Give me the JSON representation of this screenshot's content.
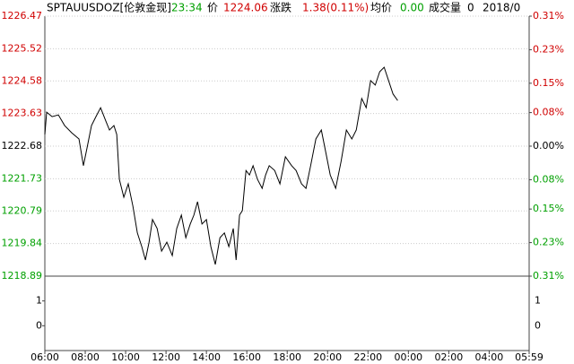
{
  "header": {
    "symbol": "SPTAUUSDOZ[伦敦金现]",
    "time": "23:34",
    "price_label": "价",
    "price": "1224.06",
    "change_label": "涨跌",
    "change": "1.38(0.11%)",
    "avg_label": "均价",
    "avg": "0.00",
    "volume_label": "成交量",
    "volume": "0",
    "date": "2018/0"
  },
  "chart_data": {
    "type": "line",
    "color": "#000000",
    "grid": true,
    "x": [
      6.0,
      6.09,
      6.36,
      6.67,
      6.98,
      7.33,
      7.69,
      7.91,
      8.09,
      8.31,
      8.53,
      8.76,
      9.02,
      9.2,
      9.42,
      9.56,
      9.69,
      9.91,
      10.13,
      10.36,
      10.58,
      10.8,
      10.98,
      11.16,
      11.33,
      11.56,
      11.78,
      12.04,
      12.31,
      12.53,
      12.76,
      12.98,
      13.2,
      13.38,
      13.56,
      13.78,
      14.0,
      14.22,
      14.44,
      14.67,
      14.89,
      15.11,
      15.33,
      15.47,
      15.64,
      15.78,
      15.96,
      16.13,
      16.31,
      16.53,
      16.76,
      16.93,
      17.11,
      17.38,
      17.64,
      17.91,
      18.22,
      18.44,
      18.71,
      18.93,
      19.16,
      19.42,
      19.69,
      19.91,
      20.13,
      20.4,
      20.67,
      20.93,
      21.2,
      21.42,
      21.69,
      21.91,
      22.13,
      22.36,
      22.58,
      22.8,
      23.02,
      23.24,
      23.47
    ],
    "values": [
      1223.02,
      1223.67,
      1223.54,
      1223.59,
      1223.28,
      1223.07,
      1222.89,
      1222.11,
      1222.63,
      1223.28,
      1223.54,
      1223.8,
      1223.41,
      1223.15,
      1223.28,
      1223.02,
      1221.71,
      1221.19,
      1221.58,
      1220.93,
      1220.15,
      1219.75,
      1219.36,
      1219.88,
      1220.54,
      1220.28,
      1219.62,
      1219.88,
      1219.49,
      1220.28,
      1220.67,
      1220.01,
      1220.41,
      1220.67,
      1221.06,
      1220.41,
      1220.54,
      1219.75,
      1219.23,
      1220.01,
      1220.15,
      1219.75,
      1220.28,
      1219.36,
      1220.67,
      1220.8,
      1221.97,
      1221.84,
      1222.11,
      1221.71,
      1221.45,
      1221.84,
      1222.11,
      1221.97,
      1221.58,
      1222.37,
      1222.11,
      1221.97,
      1221.58,
      1221.45,
      1222.11,
      1222.89,
      1223.15,
      1222.5,
      1221.84,
      1221.45,
      1222.24,
      1223.15,
      1222.89,
      1223.15,
      1224.07,
      1223.8,
      1224.59,
      1224.46,
      1224.85,
      1224.98,
      1224.59,
      1224.2,
      1224.01
    ],
    "xlim": [
      6,
      29.98
    ],
    "xticks": [
      {
        "value": 6,
        "label": "06:00"
      },
      {
        "value": 8,
        "label": "08:00"
      },
      {
        "value": 10,
        "label": "10:00"
      },
      {
        "value": 12,
        "label": "12:00"
      },
      {
        "value": 14,
        "label": "14:00"
      },
      {
        "value": 16,
        "label": "16:00"
      },
      {
        "value": 18,
        "label": "18:00"
      },
      {
        "value": 20,
        "label": "20:00"
      },
      {
        "value": 22,
        "label": "22:00"
      },
      {
        "value": 24,
        "label": "00:00"
      },
      {
        "value": 26,
        "label": "02:00"
      },
      {
        "value": 28,
        "label": "04:00"
      },
      {
        "value": 29.98,
        "label": "05:59"
      }
    ],
    "ylim": [
      1218.89,
      1226.47
    ],
    "yticks": [
      1226.47,
      1225.52,
      1224.58,
      1223.63,
      1222.68,
      1221.73,
      1220.79,
      1219.84,
      1218.89
    ],
    "y2lim": [
      -0.31,
      0.31
    ],
    "y2ticks": [
      {
        "value": 0.31,
        "label": "0.31%"
      },
      {
        "value": 0.23,
        "label": "0.23%"
      },
      {
        "value": 0.15,
        "label": "0.15%"
      },
      {
        "value": 0.08,
        "label": "0.08%"
      },
      {
        "value": 0,
        "label": "0.00%"
      },
      {
        "value": -0.08,
        "label": "0.08%"
      },
      {
        "value": -0.15,
        "label": "0.15%"
      },
      {
        "value": -0.23,
        "label": "0.23%"
      },
      {
        "value": -0.31,
        "label": "0.31%"
      }
    ],
    "volume_ylim": [
      -1,
      2
    ],
    "volume_ticks": [
      1,
      0
    ]
  }
}
